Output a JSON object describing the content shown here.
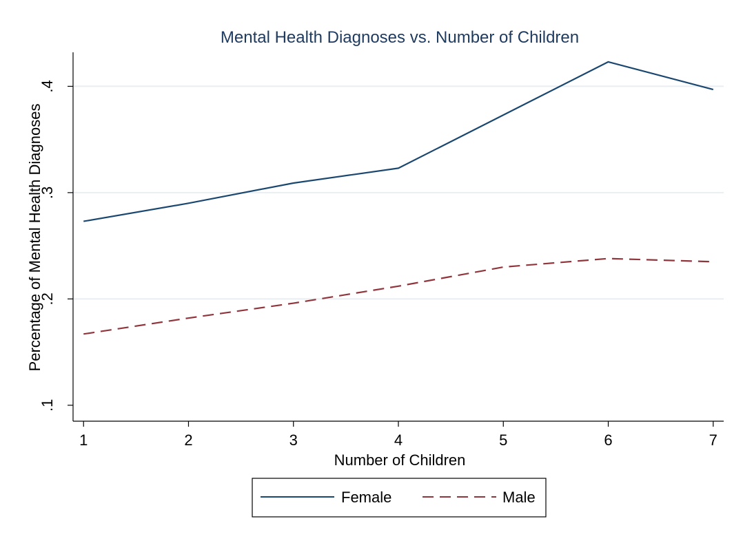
{
  "chart_data": {
    "type": "line",
    "title": "Mental Health Diagnoses vs. Number of Children",
    "xlabel": "Number of Children",
    "ylabel": "Percentage of Mental Health Diagnoses",
    "x": [
      1,
      2,
      3,
      4,
      5,
      6,
      7
    ],
    "x_ticks": [
      "1",
      "2",
      "3",
      "4",
      "5",
      "6",
      "7"
    ],
    "y_ticks": [
      {
        "value": 0.1,
        "label": ".1"
      },
      {
        "value": 0.2,
        "label": ".2"
      },
      {
        "value": 0.3,
        "label": ".3"
      },
      {
        "value": 0.4,
        "label": ".4"
      }
    ],
    "xlim": [
      0.9,
      7.1
    ],
    "ylim": [
      0.085,
      0.432
    ],
    "grid": true,
    "legend_position": "bottom",
    "series": [
      {
        "name": "Female",
        "style": "solid",
        "color": "#1a476f",
        "values": [
          0.273,
          0.29,
          0.309,
          0.323,
          0.373,
          0.423,
          0.397
        ]
      },
      {
        "name": "Male",
        "style": "dashed",
        "color": "#90353b",
        "values": [
          0.167,
          0.182,
          0.196,
          0.212,
          0.23,
          0.238,
          0.235
        ]
      }
    ],
    "colors": {
      "title": "#1e3a5f",
      "grid": "#e8eef1",
      "axis": "#000000"
    }
  }
}
